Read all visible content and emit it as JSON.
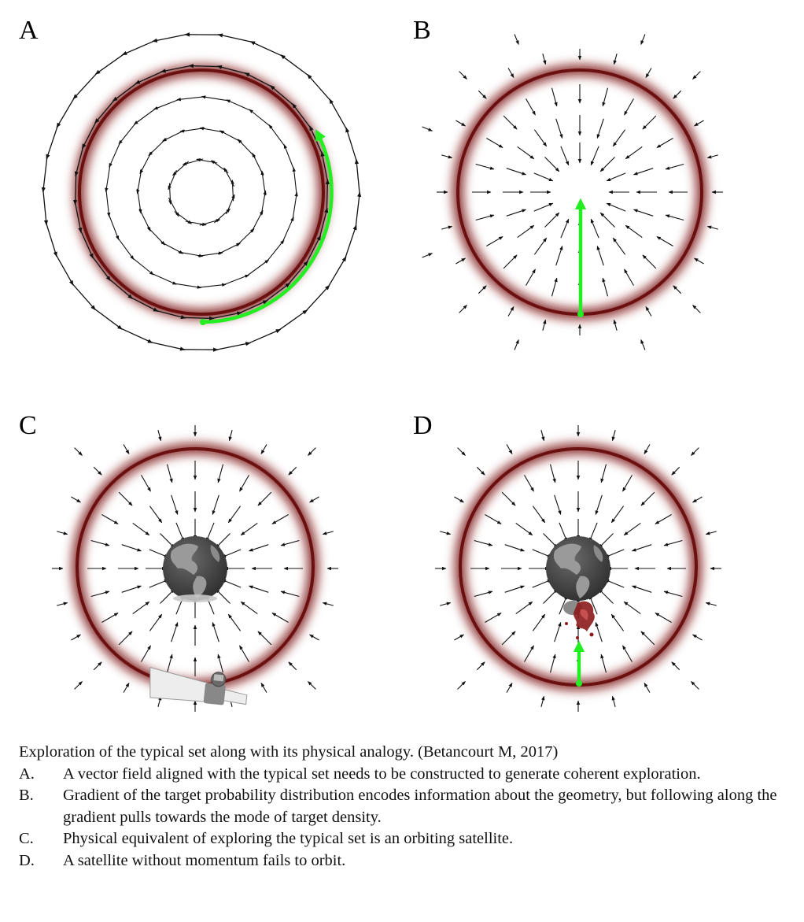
{
  "figure": {
    "panels": [
      {
        "letter": "A",
        "field": "rotational",
        "trajectory": "green arc along the ring"
      },
      {
        "letter": "B",
        "field": "gradient toward center",
        "trajectory": "green arrow from ring toward center"
      },
      {
        "letter": "C",
        "field": "gradient toward center",
        "object": "earth with orbiting satellite"
      },
      {
        "letter": "D",
        "field": "gradient toward center",
        "object": "earth with crashing satellite",
        "trajectory": "green arrow toward earth"
      }
    ],
    "colors": {
      "ring": "#7a1414",
      "trajectory": "#22ee22",
      "arrow": "#111111",
      "earth_ocean": "#4a4a4a",
      "earth_land": "#9a9a9a"
    },
    "icons": [
      "earth-icon",
      "satellite-icon",
      "satellite-debris-icon"
    ]
  },
  "caption": {
    "title": "Exploration of the typical set along with its physical analogy. (Betancourt M, 2017)",
    "items": [
      {
        "label": "A.",
        "text": "A vector field aligned with the typical set needs to be constructed to generate coherent exploration."
      },
      {
        "label": "B.",
        "text": "Gradient of the target probability distribution encodes information about the geometry, but following along the gradient pulls towards the mode of target density."
      },
      {
        "label": "C.",
        "text": "Physical equivalent of exploring the typical set is an orbiting satellite."
      },
      {
        "label": "D.",
        "text": "A satellite without momentum fails to orbit."
      }
    ]
  }
}
